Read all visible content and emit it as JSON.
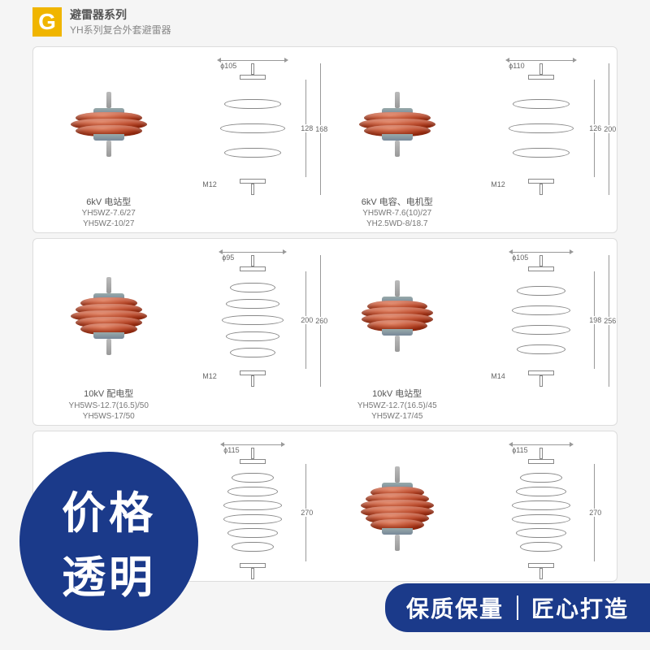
{
  "header": {
    "logo_letter": "G",
    "title": "避雷器系列",
    "subtitle": "YH系列复合外套避雷器"
  },
  "colors": {
    "accent_orange": "#f0b500",
    "arrester_red": "#b03010",
    "arrester_grey": "#aaaaaa",
    "badge_blue": "#1b3a8a",
    "panel_border": "#dddddd",
    "text_grey": "#555555"
  },
  "rows": [
    {
      "cells": [
        {
          "kind": "photo",
          "shed_count": 3,
          "shed_color": "red",
          "shed_widths": [
            82,
            94,
            82
          ],
          "caption_main": "6kV 电站型",
          "caption_sub": "YH5WZ-7.6/27\nYH5WZ-10/27",
          "dims": {
            "top_phi": "ϕ105",
            "h_body": "128",
            "h_total": "168",
            "thread": "M12"
          }
        },
        {
          "kind": "drawing",
          "shed_count": 3,
          "shed_widths": [
            70,
            80,
            70
          ],
          "dims": {
            "top_phi": "ϕ105",
            "h_body": "128",
            "h_total": "168",
            "thread": "M12"
          }
        },
        {
          "kind": "photo",
          "shed_count": 3,
          "shed_color": "red",
          "shed_widths": [
            82,
            94,
            82
          ],
          "caption_main": "6kV 电容、电机型",
          "caption_sub": "YH5WR-7.6(10)/27\nYH2.5WD-8/18.7",
          "dims": {
            "top_phi": "ϕ110",
            "h_body": "126",
            "h_total": "200",
            "thread": "M12"
          }
        },
        {
          "kind": "drawing",
          "shed_count": 3,
          "shed_widths": [
            70,
            80,
            70
          ],
          "dims": {
            "top_phi": "ϕ110",
            "h_body": "126",
            "h_total": "200",
            "thread": "M12"
          }
        }
      ]
    },
    {
      "cells": [
        {
          "kind": "photo",
          "shed_count": 5,
          "shed_color": "red",
          "shed_widths": [
            70,
            82,
            94,
            82,
            70
          ],
          "caption_main": "10kV 配电型",
          "caption_sub": "YH5WS-12.7(16.5)/50\nYH5WS-17/50",
          "dims": {
            "top_phi": "ϕ95",
            "h_body": "200",
            "h_total": "260",
            "thread": "M12"
          }
        },
        {
          "kind": "drawing",
          "shed_count": 5,
          "shed_widths": [
            56,
            66,
            76,
            66,
            56
          ],
          "dims": {
            "top_phi": "ϕ95",
            "h_body": "200",
            "h_total": "260",
            "thread": "M12"
          }
        },
        {
          "kind": "photo",
          "shed_count": 4,
          "shed_color": "red",
          "shed_widths": [
            74,
            88,
            88,
            74
          ],
          "caption_main": "10kV 电站型",
          "caption_sub": "YH5WZ-12.7(16.5)/45\nYH5WZ-17/45",
          "dims": {
            "top_phi": "ϕ105",
            "h_body": "198",
            "h_total": "256",
            "thread": "M14"
          }
        },
        {
          "kind": "drawing",
          "shed_count": 4,
          "shed_widths": [
            60,
            72,
            72,
            60
          ],
          "dims": {
            "top_phi": "ϕ105",
            "h_body": "198",
            "h_total": "256",
            "thread": "M14"
          }
        }
      ]
    },
    {
      "cells": [
        {
          "kind": "photo",
          "shed_count": 6,
          "shed_color": "grey",
          "shed_widths": [
            66,
            78,
            90,
            90,
            78,
            66
          ],
          "caption_main": "",
          "caption_sub": "",
          "dims": {
            "top_phi": "ϕ115",
            "h_body": "270",
            "h_total": "",
            "thread": ""
          }
        },
        {
          "kind": "drawing",
          "shed_count": 6,
          "shed_widths": [
            52,
            62,
            72,
            72,
            62,
            52
          ],
          "dims": {
            "top_phi": "ϕ115",
            "h_body": "270",
            "h_total": "",
            "thread": ""
          }
        },
        {
          "kind": "photo",
          "shed_count": 6,
          "shed_color": "red",
          "shed_widths": [
            66,
            78,
            90,
            90,
            78,
            66
          ],
          "caption_main": "",
          "caption_sub": "",
          "dims": {
            "top_phi": "ϕ115",
            "h_body": "270",
            "h_total": "",
            "thread": ""
          }
        },
        {
          "kind": "drawing",
          "shed_count": 6,
          "shed_widths": [
            52,
            62,
            72,
            72,
            62,
            52
          ],
          "dims": {
            "top_phi": "ϕ115",
            "h_body": "270",
            "h_total": "",
            "thread": ""
          }
        }
      ]
    }
  ],
  "badges": {
    "circle_line1": "价格",
    "circle_line2": "透明",
    "banner_left": "保质保量",
    "banner_right": "匠心打造"
  }
}
